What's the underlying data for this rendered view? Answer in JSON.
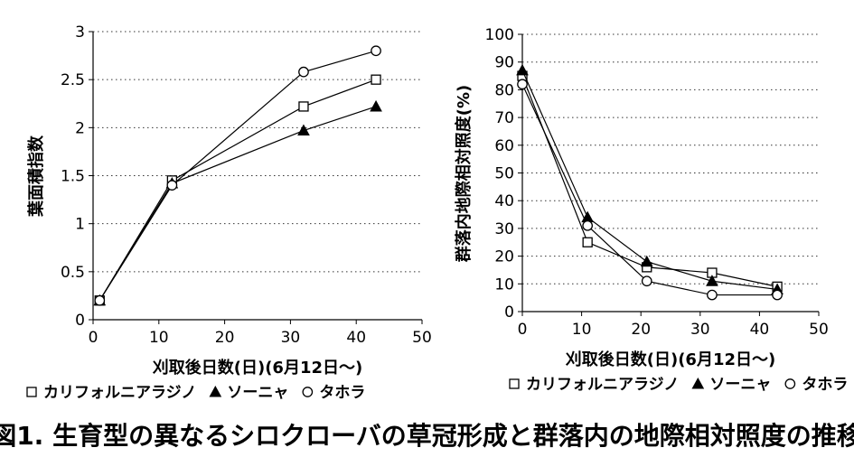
{
  "caption": "図1. 生育型の異なるシロクローバの草冠形成と群落内の地際相対照度の推移",
  "chart_data": [
    {
      "type": "line",
      "xlabel": "刈取後日数(日)(6月12日〜)",
      "ylabel": "葉面積指数",
      "xlim": [
        0,
        50
      ],
      "ylim": [
        0,
        3
      ],
      "x_ticks": [
        "0",
        "10",
        "20",
        "30",
        "40",
        "50"
      ],
      "y_ticks": [
        "0",
        "0.5",
        "1",
        "1.5",
        "2",
        "2.5",
        "3"
      ],
      "grid": "horizontal dotted",
      "legend_position": "bottom",
      "series": [
        {
          "name": "カリフォルニアラジノ",
          "marker": "square-open",
          "x": [
            1,
            12,
            32,
            43
          ],
          "y": [
            0.2,
            1.45,
            2.22,
            2.5
          ]
        },
        {
          "name": "ソーニャ",
          "marker": "triangle-filled",
          "x": [
            1,
            12,
            32,
            43
          ],
          "y": [
            0.2,
            1.42,
            1.97,
            2.22
          ]
        },
        {
          "name": "タホラ",
          "marker": "circle-open",
          "x": [
            1,
            12,
            32,
            43
          ],
          "y": [
            0.2,
            1.4,
            2.58,
            2.8
          ]
        }
      ]
    },
    {
      "type": "line",
      "xlabel": "刈取後日数(日)(6月12日〜)",
      "ylabel": "群落内地際相対照度(%)",
      "xlim": [
        0,
        50
      ],
      "ylim": [
        0,
        100
      ],
      "x_ticks": [
        "0",
        "10",
        "20",
        "30",
        "40",
        "50"
      ],
      "y_ticks": [
        "0",
        "10",
        "20",
        "30",
        "40",
        "50",
        "60",
        "70",
        "80",
        "90",
        "100"
      ],
      "grid": "horizontal dotted",
      "legend_position": "bottom",
      "series": [
        {
          "name": "カリフォルニアラジノ",
          "marker": "square-open",
          "x": [
            0,
            11,
            21,
            32,
            43
          ],
          "y": [
            85,
            25,
            16,
            14,
            9
          ]
        },
        {
          "name": "ソーニャ",
          "marker": "triangle-filled",
          "x": [
            0,
            11,
            21,
            32,
            43
          ],
          "y": [
            87,
            34,
            18,
            11,
            8
          ]
        },
        {
          "name": "タホラ",
          "marker": "circle-open",
          "x": [
            0,
            11,
            21,
            32,
            43
          ],
          "y": [
            82,
            31,
            11,
            6,
            6
          ]
        }
      ]
    }
  ]
}
